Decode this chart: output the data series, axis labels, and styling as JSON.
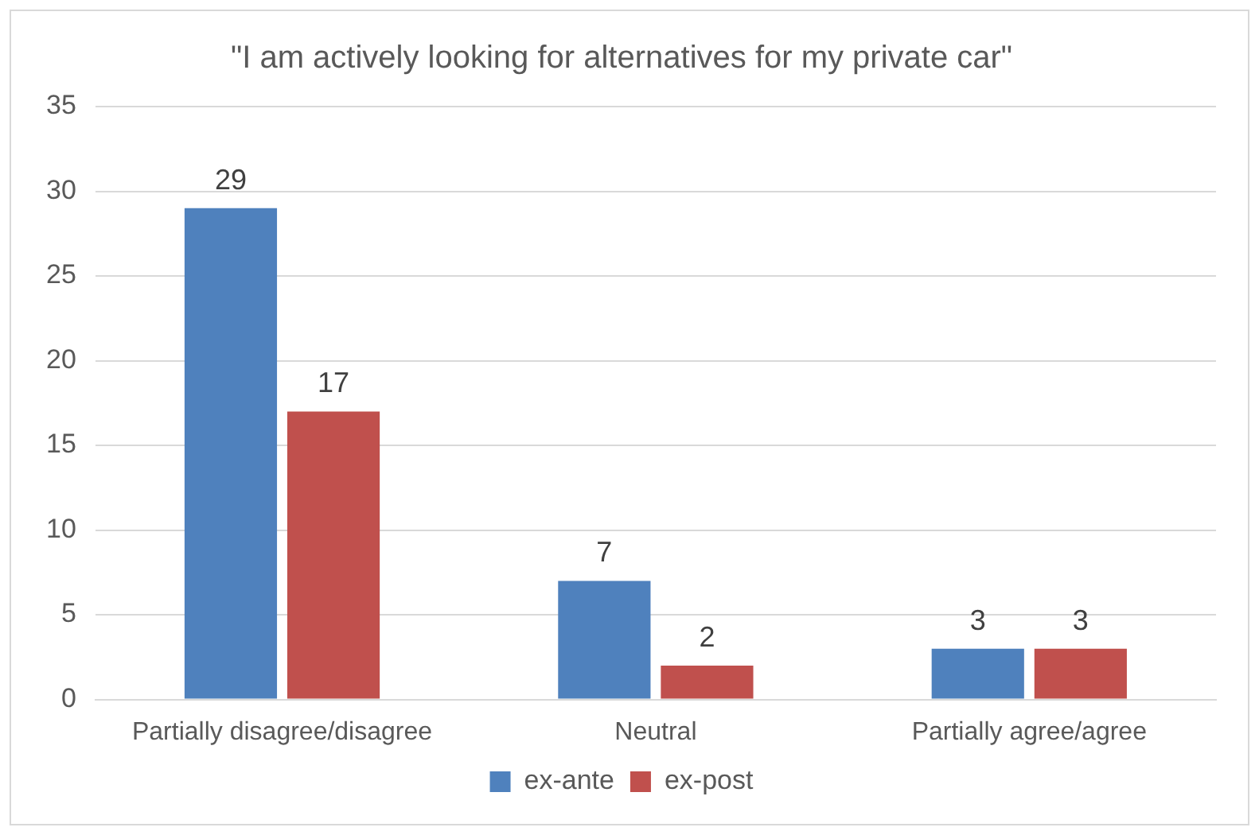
{
  "chart_data": {
    "type": "bar",
    "title": "\"I am actively looking for alternatives for my private car\"",
    "categories": [
      "Partially disagree/disagree",
      "Neutral",
      "Partially agree/agree"
    ],
    "series": [
      {
        "name": "ex-ante",
        "color": "#4f81bd",
        "values": [
          29,
          7,
          3
        ]
      },
      {
        "name": "ex-post",
        "color": "#c0504d",
        "values": [
          17,
          2,
          3
        ]
      }
    ],
    "ylim": [
      0,
      35
    ],
    "yticks": [
      0,
      5,
      10,
      15,
      20,
      25,
      30,
      35
    ],
    "grid": "y",
    "legend": "bottom",
    "data_labels": true
  }
}
